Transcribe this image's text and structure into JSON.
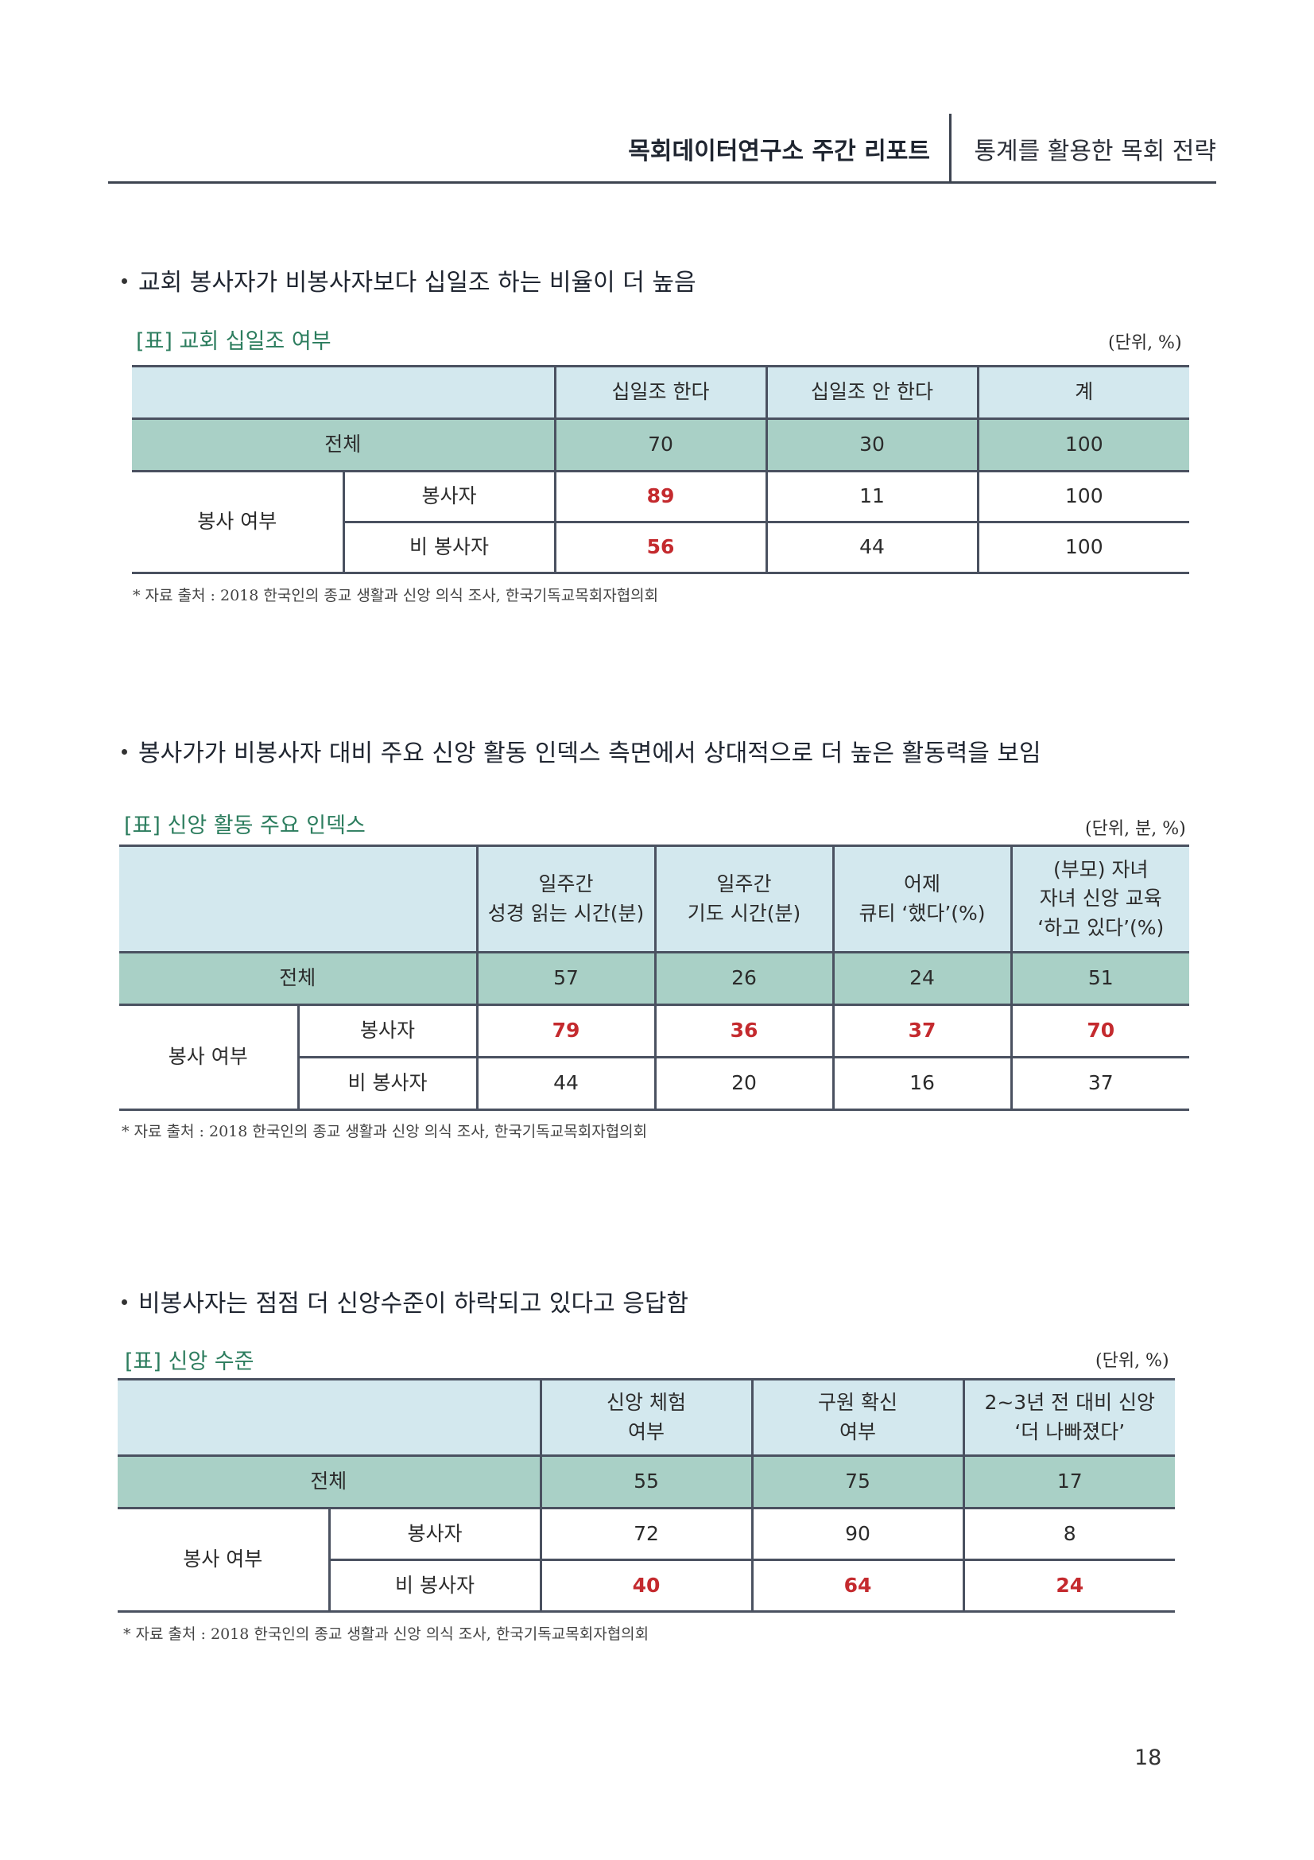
{
  "header": {
    "left_title": "목회데이터연구소 주간 리포트",
    "right_title": "통계를  활용한 목회 전략"
  },
  "sections": [
    {
      "bullet": "교회 봉사자가 비봉사자보다 십일조 하는 비율이 더 높음",
      "caption": "[표] 교회 십일조 여부",
      "unit": "(단위, %)",
      "columns": [
        "십일조 한다",
        "십일조 안 한다",
        "계"
      ],
      "total_label": "전체",
      "total_values": [
        "70",
        "30",
        "100"
      ],
      "group_label": "봉사 여부",
      "rows": [
        {
          "label": "봉사자",
          "values": [
            "89",
            "11",
            "100"
          ]
        },
        {
          "label": "비 봉사자",
          "values": [
            "56",
            "44",
            "100"
          ]
        }
      ],
      "source": "* 자료 출처 : 2018 한국인의 종교 생활과 신앙 의식 조사, 한국기독교목회자협의회"
    },
    {
      "bullet": "봉사가가 비봉사자 대비 주요 신앙 활동 인덱스 측면에서 상대적으로 더 높은 활동력을 보임",
      "caption": "[표] 신앙 활동 주요 인덱스",
      "unit": "(단위, 분, %)",
      "columns": [
        [
          "일주간",
          "성경 읽는 시간(분)"
        ],
        [
          "일주간",
          "기도 시간(분)"
        ],
        [
          "어제",
          "큐티 ‘했다’(%)"
        ],
        [
          "(부모) 자녀",
          "자녀 신앙 교육",
          "‘하고 있다’(%)"
        ]
      ],
      "total_label": "전체",
      "total_values": [
        "57",
        "26",
        "24",
        "51"
      ],
      "group_label": "봉사 여부",
      "rows": [
        {
          "label": "봉사자",
          "values": [
            "79",
            "36",
            "37",
            "70"
          ]
        },
        {
          "label": "비 봉사자",
          "values": [
            "44",
            "20",
            "16",
            "37"
          ]
        }
      ],
      "source": "* 자료 출처 : 2018 한국인의 종교 생활과 신앙 의식 조사, 한국기독교목회자협의회"
    },
    {
      "bullet": "비봉사자는 점점 더 신앙수준이 하락되고 있다고 응답함",
      "caption": "[표] 신앙 수준",
      "unit": "(단위, %)",
      "columns": [
        [
          "신앙 체험",
          "여부"
        ],
        [
          "구원 확신",
          "여부"
        ],
        [
          "2~3년 전 대비 신앙",
          "‘더 나빠졌다’"
        ]
      ],
      "total_label": "전체",
      "total_values": [
        "55",
        "75",
        "17"
      ],
      "group_label": "봉사 여부",
      "rows": [
        {
          "label": "봉사자",
          "values": [
            "72",
            "90",
            "8"
          ]
        },
        {
          "label": "비 봉사자",
          "values": [
            "40",
            "64",
            "24"
          ]
        }
      ],
      "source": "* 자료 출처 : 2018 한국인의 종교 생활과 신앙 의식 조사, 한국기독교목회자협의회"
    }
  ],
  "highlight_color": "#c42a2e",
  "page_number": "18"
}
